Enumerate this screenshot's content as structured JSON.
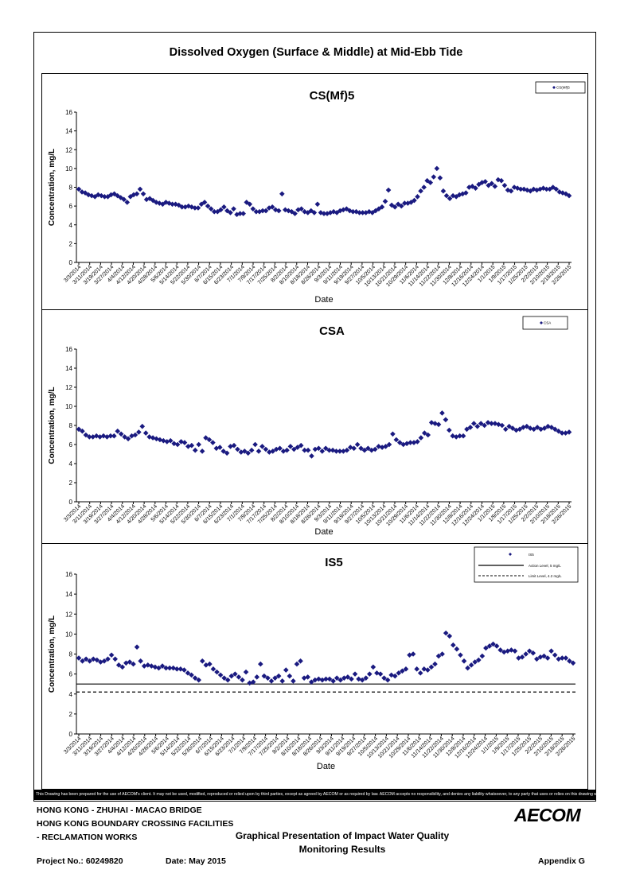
{
  "main_title": "Dissolved Oxygen (Surface & Middle) at Mid-Ebb Tide",
  "colors": {
    "marker": "#1a1a80",
    "line": "#000000"
  },
  "chart_data": [
    {
      "type": "scatter",
      "title": "CS(Mf)5",
      "xlabel": "Date",
      "ylabel": "Concentration, mg/L",
      "ylim": [
        0,
        16
      ],
      "yticks": [
        "0",
        "2",
        "4",
        "6",
        "8",
        "10",
        "12",
        "14",
        "16"
      ],
      "xticks": [
        "3/3/2014",
        "3/11/2014",
        "3/19/2014",
        "3/27/2014",
        "4/4/2014",
        "4/12/2014",
        "4/20/2014",
        "4/28/2014",
        "5/6/2014",
        "5/14/2014",
        "5/22/2014",
        "5/30/2014",
        "6/7/2014",
        "6/15/2014",
        "6/23/2014",
        "7/1/2014",
        "7/9/2014",
        "7/17/2014",
        "7/25/2014",
        "8/2/2014",
        "8/10/2014",
        "8/18/2014",
        "8/26/2014",
        "9/3/2014",
        "9/11/2014",
        "9/19/2014",
        "9/27/2014",
        "10/5/2014",
        "10/13/2014",
        "10/21/2014",
        "10/29/2014",
        "11/6/2014",
        "11/14/2014",
        "11/22/2014",
        "11/30/2014",
        "12/8/2014",
        "12/16/2014",
        "12/24/2014",
        "1/1/2015",
        "1/9/2015",
        "1/17/2015",
        "1/25/2015",
        "2/2/2015",
        "2/10/2015",
        "2/18/2015",
        "2/26/2015"
      ],
      "grid": false,
      "legend_position": "top-right",
      "series": [
        {
          "name": "CS(Mf)5",
          "values": [
            7.8,
            7.5,
            7.4,
            7.2,
            7.1,
            7.0,
            7.2,
            7.1,
            7.0,
            7.0,
            7.2,
            7.3,
            7.1,
            6.9,
            6.7,
            6.4,
            7.0,
            7.2,
            7.3,
            7.8,
            7.3,
            6.7,
            6.8,
            6.6,
            6.4,
            6.3,
            6.2,
            6.4,
            6.3,
            6.2,
            6.2,
            6.1,
            5.9,
            5.9,
            6.0,
            5.9,
            5.8,
            5.8,
            6.2,
            6.4,
            6.0,
            5.7,
            5.4,
            5.4,
            5.6,
            5.9,
            5.5,
            5.3,
            5.7,
            5.1,
            5.2,
            5.2,
            6.4,
            6.2,
            5.7,
            5.4,
            5.4,
            5.5,
            5.5,
            5.8,
            5.9,
            5.6,
            5.5,
            7.3,
            5.6,
            5.5,
            5.4,
            5.2,
            5.6,
            5.7,
            5.4,
            5.3,
            5.5,
            5.3,
            6.2,
            5.3,
            5.2,
            5.2,
            5.3,
            5.4,
            5.3,
            5.5,
            5.6,
            5.7,
            5.5,
            5.4,
            5.4,
            5.3,
            5.3,
            5.3,
            5.4,
            5.3,
            5.5,
            5.7,
            5.9,
            6.5,
            7.7,
            6.1,
            5.9,
            6.2,
            6.0,
            6.3,
            6.3,
            6.4,
            6.6,
            7.0,
            7.6,
            8.0,
            8.7,
            8.5,
            9.1,
            10.0,
            9.0,
            7.6,
            7.1,
            6.8,
            7.1,
            7.0,
            7.2,
            7.3,
            7.4,
            8.0,
            8.1,
            7.9,
            8.3,
            8.5,
            8.6,
            8.2,
            8.4,
            8.1,
            8.8,
            8.7,
            8.2,
            7.7,
            7.6,
            8.0,
            7.9,
            7.8,
            7.8,
            7.7,
            7.6,
            7.8,
            7.7,
            7.8,
            7.9,
            7.8,
            7.8,
            8.0,
            7.8,
            7.5,
            7.4,
            7.3,
            7.1
          ]
        }
      ]
    },
    {
      "type": "scatter",
      "title": "CSA",
      "xlabel": "Date",
      "ylabel": "Concentration, mg/L",
      "ylim": [
        0,
        16
      ],
      "yticks": [
        "0",
        "2",
        "4",
        "6",
        "8",
        "10",
        "12",
        "14",
        "16"
      ],
      "xticks": [
        "3/3/2014",
        "3/11/2014",
        "3/19/2014",
        "3/27/2014",
        "4/4/2014",
        "4/12/2014",
        "4/20/2014",
        "4/28/2014",
        "5/6/2014",
        "5/14/2014",
        "5/22/2014",
        "5/30/2014",
        "6/7/2014",
        "6/15/2014",
        "6/23/2014",
        "7/1/2014",
        "7/9/2014",
        "7/17/2014",
        "7/25/2014",
        "8/2/2014",
        "8/10/2014",
        "8/18/2014",
        "8/26/2014",
        "9/3/2014",
        "9/11/2014",
        "9/19/2014",
        "9/27/2014",
        "10/5/2014",
        "10/13/2014",
        "10/21/2014",
        "10/29/2014",
        "11/6/2014",
        "11/14/2014",
        "11/22/2014",
        "11/30/2014",
        "12/8/2014",
        "12/16/2014",
        "12/24/2014",
        "1/1/2015",
        "1/9/2015",
        "1/17/2015",
        "1/25/2015",
        "2/2/2015",
        "2/10/2015",
        "2/18/2015",
        "2/26/2015"
      ],
      "grid": false,
      "legend_position": "top-right",
      "series": [
        {
          "name": "CSA",
          "values": [
            7.6,
            7.4,
            7.0,
            6.8,
            6.8,
            6.9,
            6.8,
            6.9,
            6.8,
            6.9,
            6.9,
            7.4,
            7.1,
            6.8,
            6.6,
            6.9,
            7.0,
            7.3,
            7.9,
            7.2,
            6.8,
            6.7,
            6.6,
            6.5,
            6.4,
            6.3,
            6.4,
            6.1,
            6.0,
            6.3,
            6.2,
            5.8,
            5.9,
            5.4,
            6.0,
            5.3,
            6.7,
            6.5,
            6.2,
            5.6,
            5.7,
            5.3,
            5.1,
            5.8,
            5.9,
            5.5,
            5.2,
            5.3,
            5.1,
            5.4,
            6.0,
            5.3,
            5.8,
            5.5,
            5.2,
            5.3,
            5.5,
            5.6,
            5.3,
            5.4,
            5.8,
            5.5,
            5.7,
            5.9,
            5.4,
            5.4,
            4.8,
            5.5,
            5.6,
            5.3,
            5.6,
            5.4,
            5.4,
            5.3,
            5.3,
            5.3,
            5.4,
            5.7,
            5.6,
            6.0,
            5.6,
            5.4,
            5.6,
            5.4,
            5.5,
            5.8,
            5.7,
            5.8,
            6.0,
            7.1,
            6.5,
            6.2,
            6.0,
            6.1,
            6.2,
            6.2,
            6.3,
            6.7,
            7.2,
            7.0,
            8.3,
            8.2,
            8.1,
            9.3,
            8.6,
            7.5,
            6.9,
            6.8,
            6.9,
            6.9,
            7.6,
            7.8,
            8.2,
            7.9,
            8.2,
            8.0,
            8.3,
            8.2,
            8.2,
            8.1,
            8.0,
            7.6,
            7.9,
            7.7,
            7.5,
            7.6,
            7.8,
            7.9,
            7.7,
            7.6,
            7.8,
            7.6,
            7.7,
            7.9,
            7.8,
            7.6,
            7.4,
            7.2,
            7.2,
            7.3
          ]
        }
      ]
    },
    {
      "type": "scatter",
      "title": "IS5",
      "xlabel": "Date",
      "ylabel": "Concentration, mg/L",
      "ylim": [
        0,
        16
      ],
      "yticks": [
        "0",
        "2",
        "4",
        "6",
        "8",
        "10",
        "12",
        "14",
        "16"
      ],
      "xticks": [
        "3/3/2014",
        "3/11/2014",
        "3/19/2014",
        "3/27/2014",
        "4/4/2014",
        "4/12/2014",
        "4/20/2014",
        "4/28/2014",
        "5/6/2014",
        "5/14/2014",
        "5/22/2014",
        "5/30/2014",
        "6/7/2014",
        "6/15/2014",
        "6/23/2014",
        "7/1/2014",
        "7/9/2014",
        "7/17/2014",
        "7/25/2014",
        "8/2/2014",
        "8/10/2014",
        "8/18/2014",
        "8/26/2014",
        "9/3/2014",
        "9/11/2014",
        "9/19/2014",
        "9/27/2014",
        "10/5/2014",
        "10/13/2014",
        "10/21/2014",
        "10/29/2014",
        "11/6/2014",
        "11/14/2014",
        "11/22/2014",
        "11/30/2014",
        "12/8/2014",
        "12/16/2014",
        "12/24/2014",
        "1/1/2015",
        "1/9/2015",
        "1/17/2015",
        "1/25/2015",
        "2/2/2015",
        "2/10/2015",
        "2/18/2015",
        "2/26/2015"
      ],
      "grid": false,
      "legend_position": "top-right",
      "series": [
        {
          "name": "IS5",
          "values": [
            7.6,
            7.3,
            7.5,
            7.3,
            7.5,
            7.4,
            7.2,
            7.3,
            7.5,
            7.9,
            7.5,
            6.9,
            6.7,
            7.1,
            7.2,
            7.0,
            8.7,
            7.3,
            6.8,
            6.9,
            6.8,
            6.7,
            6.6,
            6.8,
            6.6,
            6.6,
            6.6,
            6.5,
            6.5,
            6.4,
            6.1,
            5.9,
            5.6,
            5.4,
            7.3,
            6.9,
            7.0,
            6.5,
            6.2,
            5.9,
            5.6,
            5.4,
            5.8,
            6.0,
            5.7,
            5.4,
            6.2,
            5.1,
            5.2,
            5.7,
            7.0,
            5.8,
            5.6,
            5.3,
            5.6,
            5.8,
            5.3,
            6.4,
            5.8,
            5.3,
            7.0,
            7.3,
            5.6,
            5.7,
            5.2,
            5.4,
            5.5,
            5.4,
            5.5,
            5.5,
            5.3,
            5.6,
            5.4,
            5.6,
            5.7,
            5.5,
            6.0,
            5.5,
            5.4,
            5.6,
            6.0,
            6.7,
            6.1,
            6.0,
            5.6,
            5.4,
            5.9,
            5.8,
            6.1,
            6.3,
            6.5,
            7.9,
            8.0,
            6.5,
            6.1,
            6.5,
            6.4,
            6.7,
            7.0,
            7.8,
            8.0,
            10.1,
            9.8,
            8.9,
            8.5,
            7.9,
            7.3,
            6.6,
            6.9,
            7.2,
            7.4,
            7.8,
            8.6,
            8.8,
            9.0,
            8.8,
            8.4,
            8.2,
            8.3,
            8.4,
            8.3,
            7.6,
            7.7,
            8.0,
            8.3,
            8.1,
            7.5,
            7.7,
            7.8,
            7.6,
            8.3,
            7.9,
            7.5,
            7.6,
            7.6,
            7.3,
            7.1
          ]
        }
      ],
      "legend": {
        "series_label": "IS5",
        "action_label": "Action Level, 5 mg/L",
        "limit_label": "Limit Level, 4.2 mg/L"
      },
      "reference_lines": [
        {
          "name": "Action Level, 5 mg/L",
          "value": 5,
          "style": "solid"
        },
        {
          "name": "Limit Level, 4.2 mg/L",
          "value": 4.2,
          "style": "dashed"
        }
      ]
    }
  ],
  "disclaimer": "This Drawing has been prepared for the use of AECOM's client. It may not be used, modified, reproduced or relied upon by third parties, except as agreed by AECOM or as required by law. AECOM accepts no responsibility, and denies any liability whatsoever, to any party that uses or relies on this drawing without AECOM's express written consent.",
  "footer": {
    "line1": "HONG KONG - ZHUHAI - MACAO BRIDGE",
    "line2": "HONG KONG BOUNDARY CROSSING FACILITIES",
    "line3": "- RECLAMATION WORKS",
    "doc_title_1": "Graphical Presentation of Impact Water Quality",
    "doc_title_2": "Monitoring Results",
    "project_no": "Project No.: 60249820",
    "date": "Date: May 2015",
    "appendix": "Appendix G",
    "logo": "AECOM"
  }
}
